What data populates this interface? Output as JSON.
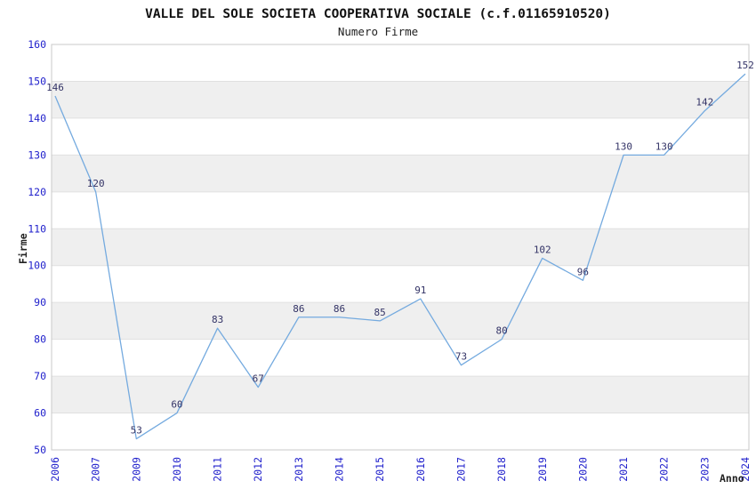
{
  "header": {
    "title": "VALLE DEL SOLE SOCIETA COOPERATIVA SOCIALE (c.f.01165910520)",
    "subtitle": "Numero Firme"
  },
  "chart_data": {
    "type": "line",
    "title": "VALLE DEL SOLE SOCIETA COOPERATIVA SOCIALE (c.f.01165910520)",
    "subtitle": "Numero Firme",
    "xlabel": "Anno",
    "ylabel": "Firme",
    "categories": [
      "2006",
      "2007",
      "2009",
      "2010",
      "2011",
      "2012",
      "2013",
      "2014",
      "2015",
      "2016",
      "2017",
      "2018",
      "2019",
      "2020",
      "2021",
      "2022",
      "2023",
      "2024"
    ],
    "values": [
      146,
      120,
      53,
      60,
      83,
      67,
      86,
      86,
      85,
      91,
      73,
      80,
      102,
      96,
      130,
      130,
      142,
      152
    ],
    "ylim": [
      50,
      160
    ],
    "ytick_step": 10,
    "grid": "horizontal alternating bands",
    "legend": "none",
    "colors": {
      "line": "#74aadf",
      "tick_label": "#2222cc",
      "data_label": "#333366",
      "band_fill": "#efefef",
      "grid_line": "#e0e0e0",
      "plot_border": "#c8c8c8",
      "background": "#ffffff"
    }
  }
}
